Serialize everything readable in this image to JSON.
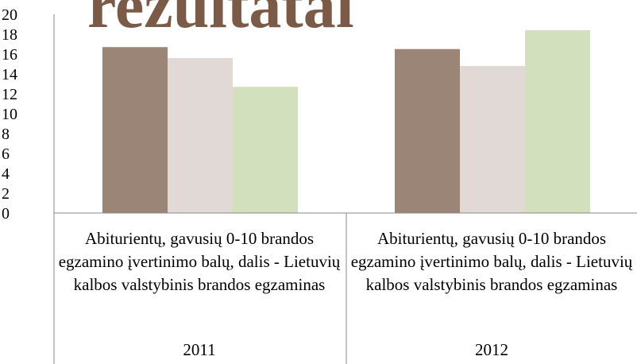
{
  "chart_data": {
    "type": "bar",
    "title": "rezultatai",
    "categories": [
      "2011",
      "2012"
    ],
    "category_labels": [
      "Abiturientų, gavusių 0-10 brandos egzamino įvertinimo balų, dalis - Lietuvių kalbos valstybinis brandos egzaminas",
      "Abiturientų, gavusių 0-10 brandos egzamino įvertinimo balų, dalis - Lietuvių kalbos valstybinis brandos egzaminas"
    ],
    "series": [
      {
        "color": "#9b8576",
        "values": [
          16.7,
          16.5
        ]
      },
      {
        "color": "#e0d9d6",
        "values": [
          15.6,
          14.8
        ]
      },
      {
        "color": "#d3e0bd",
        "values": [
          12.7,
          18.4
        ]
      }
    ],
    "ylim": [
      0,
      20
    ],
    "yticks": [
      0,
      2,
      4,
      6,
      8,
      10,
      12,
      14,
      16,
      18,
      20
    ],
    "grid": false
  }
}
